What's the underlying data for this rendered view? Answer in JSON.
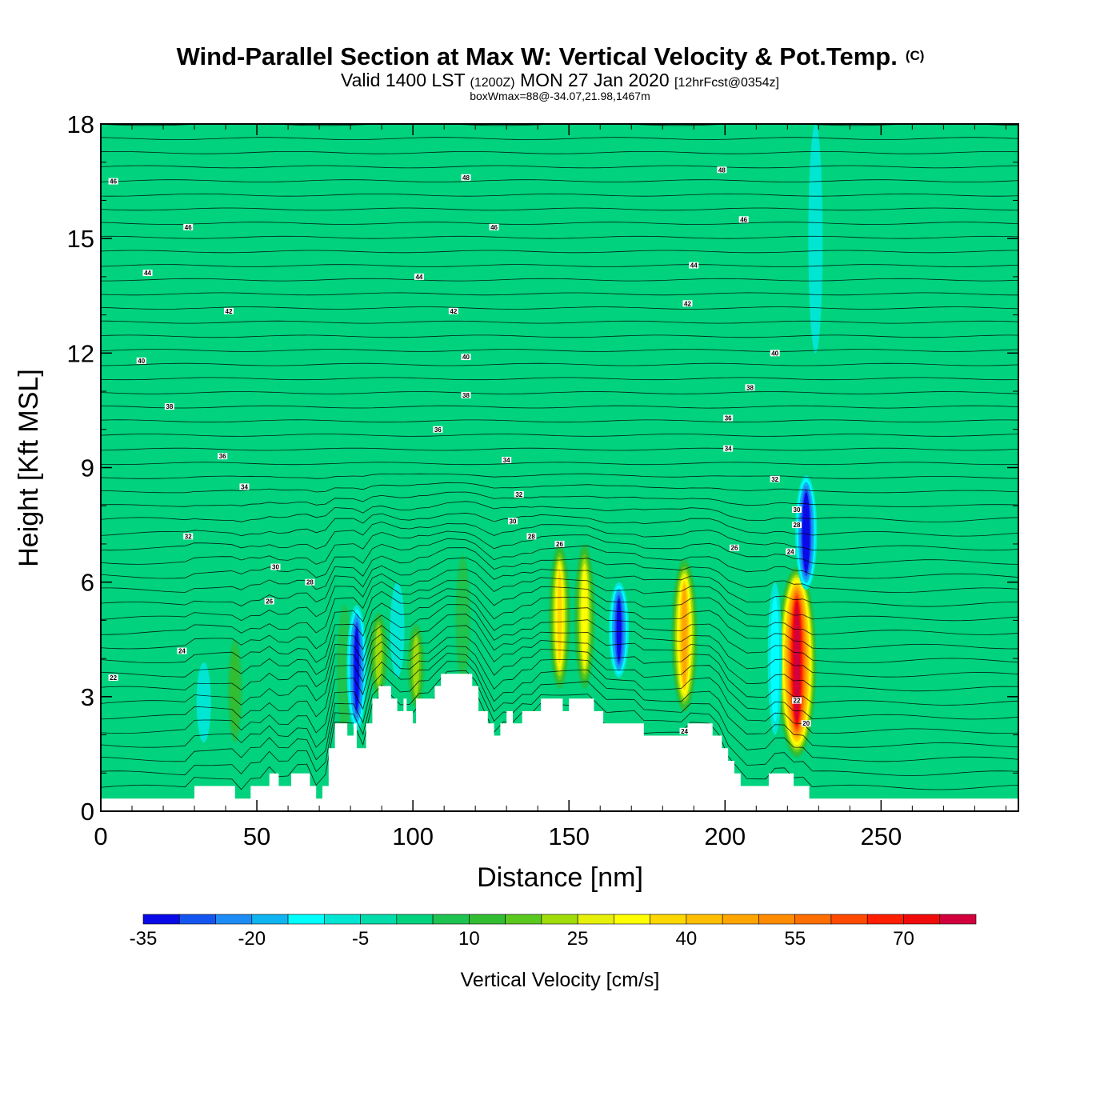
{
  "chart_data": {
    "type": "heatmap",
    "title": "Wind-Parallel Section at Max W: Vertical Velocity & Pot.Temp.",
    "title_mark": "(C)",
    "subtitle_parts": [
      "Valid 1400 LST",
      "(1200Z)",
      "MON 27 Jan 2020",
      "[12hrFcst@0354z]"
    ],
    "subtitle2": "boxWmax=88@-34.07,21.98,1467m",
    "xlabel": "Distance [nm]",
    "ylabel": "Height [Kft MSL]",
    "xlim": [
      0,
      294
    ],
    "ylim": [
      0,
      18
    ],
    "xticks": [
      {
        "value": 0,
        "label": "0"
      },
      {
        "value": 50,
        "label": "50"
      },
      {
        "value": 100,
        "label": "100"
      },
      {
        "value": 150,
        "label": "150"
      },
      {
        "value": 200,
        "label": "200"
      },
      {
        "value": 250,
        "label": "250"
      }
    ],
    "yticks": [
      {
        "value": 0,
        "label": "0"
      },
      {
        "value": 3,
        "label": "3"
      },
      {
        "value": 6,
        "label": "6"
      },
      {
        "value": 9,
        "label": "9"
      },
      {
        "value": 12,
        "label": "12"
      },
      {
        "value": 15,
        "label": "15"
      },
      {
        "value": 18,
        "label": "18"
      }
    ],
    "colorbar": {
      "label": "Vertical Velocity [cm/s]",
      "boundaries": [
        -35,
        -30,
        -25,
        -20,
        -15,
        -10,
        -5,
        0,
        5,
        10,
        15,
        20,
        25,
        30,
        35,
        40,
        45,
        50,
        55,
        60,
        65,
        70,
        75,
        80
      ],
      "colors": [
        "#0a0ae8",
        "#1455f0",
        "#1e8cf5",
        "#0fb4f0",
        "#00ffff",
        "#00e6d2",
        "#00dcaa",
        "#00d27d",
        "#1ec350",
        "#32bd32",
        "#5ac81e",
        "#a0dc0a",
        "#e6f00a",
        "#ffff00",
        "#ffd700",
        "#ffbe00",
        "#ffa500",
        "#ff8c00",
        "#ff6e00",
        "#ff4b00",
        "#ff1e00",
        "#f00a0a",
        "#d2003c"
      ],
      "tick_labels": [
        {
          "value": -35,
          "label": "-35"
        },
        {
          "value": -20,
          "label": "-20"
        },
        {
          "value": -5,
          "label": "-5"
        },
        {
          "value": 10,
          "label": "10"
        },
        {
          "value": 25,
          "label": "25"
        },
        {
          "value": 40,
          "label": "40"
        },
        {
          "value": 55,
          "label": "55"
        },
        {
          "value": 70,
          "label": "70"
        }
      ]
    },
    "background_value": 2,
    "updraft_cells": [
      {
        "x": 43,
        "y0": 1.8,
        "y1": 4.5,
        "w": 10
      },
      {
        "x": 78,
        "y0": 2.0,
        "y1": 5.4,
        "w": 8
      },
      {
        "x": 89,
        "y0": 3.0,
        "y1": 5.2,
        "w": 24
      },
      {
        "x": 101,
        "y0": 2.7,
        "y1": 4.9,
        "w": 22
      },
      {
        "x": 116,
        "y0": 3.4,
        "y1": 6.7,
        "w": 8
      },
      {
        "x": 147,
        "y0": 3.2,
        "y1": 7.0,
        "w": 35
      },
      {
        "x": 155,
        "y0": 3.2,
        "y1": 7.0,
        "w": 32
      },
      {
        "x": 187,
        "y0": 2.6,
        "y1": 6.6,
        "w": 48
      },
      {
        "x": 223,
        "y0": 1.4,
        "y1": 6.4,
        "w": 85
      }
    ],
    "downdraft_cells": [
      {
        "x": 33,
        "y0": 1.8,
        "y1": 3.9,
        "w": -5
      },
      {
        "x": 82,
        "y0": 2.1,
        "y1": 5.4,
        "w": -30
      },
      {
        "x": 95,
        "y0": 3.5,
        "y1": 6.0,
        "w": -5
      },
      {
        "x": 166,
        "y0": 3.5,
        "y1": 6.0,
        "w": -30
      },
      {
        "x": 216,
        "y0": 2.0,
        "y1": 6.0,
        "w": -10
      },
      {
        "x": 226,
        "y0": 5.8,
        "y1": 8.8,
        "w": -35
      },
      {
        "x": 229,
        "y0": 12.0,
        "y1": 18.0,
        "w": -5
      }
    ],
    "theta_contour_labels": [
      {
        "x": 4,
        "y": 16.5,
        "label": "46"
      },
      {
        "x": 28,
        "y": 15.3,
        "label": "46"
      },
      {
        "x": 15,
        "y": 14.1,
        "label": "44"
      },
      {
        "x": 41,
        "y": 13.1,
        "label": "42"
      },
      {
        "x": 13,
        "y": 11.8,
        "label": "40"
      },
      {
        "x": 22,
        "y": 10.6,
        "label": "38"
      },
      {
        "x": 39,
        "y": 9.3,
        "label": "36"
      },
      {
        "x": 46,
        "y": 8.5,
        "label": "34"
      },
      {
        "x": 28,
        "y": 7.2,
        "label": "32"
      },
      {
        "x": 56,
        "y": 6.4,
        "label": "30"
      },
      {
        "x": 67,
        "y": 6.0,
        "label": "28"
      },
      {
        "x": 54,
        "y": 5.5,
        "label": "26"
      },
      {
        "x": 26,
        "y": 4.2,
        "label": "24"
      },
      {
        "x": 4,
        "y": 3.5,
        "label": "22"
      },
      {
        "x": 117,
        "y": 16.6,
        "label": "48"
      },
      {
        "x": 126,
        "y": 15.3,
        "label": "46"
      },
      {
        "x": 102,
        "y": 14.0,
        "label": "44"
      },
      {
        "x": 113,
        "y": 13.1,
        "label": "42"
      },
      {
        "x": 117,
        "y": 11.9,
        "label": "40"
      },
      {
        "x": 117,
        "y": 10.9,
        "label": "38"
      },
      {
        "x": 108,
        "y": 10.0,
        "label": "36"
      },
      {
        "x": 130,
        "y": 9.2,
        "label": "34"
      },
      {
        "x": 134,
        "y": 8.3,
        "label": "32"
      },
      {
        "x": 132,
        "y": 7.6,
        "label": "30"
      },
      {
        "x": 138,
        "y": 7.2,
        "label": "28"
      },
      {
        "x": 147,
        "y": 7.0,
        "label": "26"
      },
      {
        "x": 199,
        "y": 16.8,
        "label": "48"
      },
      {
        "x": 206,
        "y": 15.5,
        "label": "46"
      },
      {
        "x": 190,
        "y": 14.3,
        "label": "44"
      },
      {
        "x": 188,
        "y": 13.3,
        "label": "42"
      },
      {
        "x": 216,
        "y": 12.0,
        "label": "40"
      },
      {
        "x": 208,
        "y": 11.1,
        "label": "38"
      },
      {
        "x": 201,
        "y": 10.3,
        "label": "36"
      },
      {
        "x": 201,
        "y": 9.5,
        "label": "34"
      },
      {
        "x": 216,
        "y": 8.7,
        "label": "32"
      },
      {
        "x": 223,
        "y": 7.9,
        "label": "30"
      },
      {
        "x": 223,
        "y": 7.5,
        "label": "28"
      },
      {
        "x": 221,
        "y": 6.8,
        "label": "24"
      },
      {
        "x": 203,
        "y": 6.9,
        "label": "26"
      },
      {
        "x": 187,
        "y": 2.1,
        "label": "24"
      },
      {
        "x": 223,
        "y": 2.9,
        "label": "22"
      },
      {
        "x": 226,
        "y": 2.3,
        "label": "20"
      }
    ],
    "terrain_kft": [
      [
        0,
        0.33
      ],
      [
        30,
        0.33
      ],
      [
        30,
        0.66
      ],
      [
        43,
        0.66
      ],
      [
        43,
        0.33
      ],
      [
        48,
        0.33
      ],
      [
        48,
        0.66
      ],
      [
        54,
        0.66
      ],
      [
        54,
        0.99
      ],
      [
        57,
        0.99
      ],
      [
        57,
        0.66
      ],
      [
        61,
        0.66
      ],
      [
        61,
        0.99
      ],
      [
        67,
        0.99
      ],
      [
        67,
        0.66
      ],
      [
        69,
        0.66
      ],
      [
        69,
        0.33
      ],
      [
        71,
        0.33
      ],
      [
        71,
        0.66
      ],
      [
        73,
        0.66
      ],
      [
        73,
        1.65
      ],
      [
        75,
        1.65
      ],
      [
        75,
        2.3
      ],
      [
        79,
        2.3
      ],
      [
        79,
        1.98
      ],
      [
        81,
        1.98
      ],
      [
        81,
        2.3
      ],
      [
        82,
        2.3
      ],
      [
        82,
        1.65
      ],
      [
        85,
        1.65
      ],
      [
        85,
        2.3
      ],
      [
        87,
        2.3
      ],
      [
        87,
        2.95
      ],
      [
        89,
        2.95
      ],
      [
        89,
        3.28
      ],
      [
        93,
        3.28
      ],
      [
        93,
        2.95
      ],
      [
        95,
        2.95
      ],
      [
        95,
        2.62
      ],
      [
        97,
        2.62
      ],
      [
        97,
        2.95
      ],
      [
        98,
        2.95
      ],
      [
        98,
        2.62
      ],
      [
        100,
        2.62
      ],
      [
        100,
        2.3
      ],
      [
        101,
        2.3
      ],
      [
        101,
        2.95
      ],
      [
        107,
        2.95
      ],
      [
        107,
        3.28
      ],
      [
        109,
        3.28
      ],
      [
        109,
        3.6
      ],
      [
        119,
        3.6
      ],
      [
        119,
        3.28
      ],
      [
        121,
        3.28
      ],
      [
        121,
        2.62
      ],
      [
        124,
        2.62
      ],
      [
        124,
        2.3
      ],
      [
        126,
        2.3
      ],
      [
        126,
        1.98
      ],
      [
        128,
        1.98
      ],
      [
        128,
        2.3
      ],
      [
        130,
        2.3
      ],
      [
        130,
        2.62
      ],
      [
        132,
        2.62
      ],
      [
        132,
        2.3
      ],
      [
        135,
        2.3
      ],
      [
        135,
        2.62
      ],
      [
        141,
        2.62
      ],
      [
        141,
        2.95
      ],
      [
        148,
        2.95
      ],
      [
        148,
        2.62
      ],
      [
        150,
        2.62
      ],
      [
        150,
        2.95
      ],
      [
        158,
        2.95
      ],
      [
        158,
        2.62
      ],
      [
        161,
        2.62
      ],
      [
        161,
        2.3
      ],
      [
        170,
        2.3
      ],
      [
        170,
        2.3
      ],
      [
        174,
        2.3
      ],
      [
        174,
        1.98
      ],
      [
        188,
        1.98
      ],
      [
        188,
        2.3
      ],
      [
        196,
        2.3
      ],
      [
        196,
        1.98
      ],
      [
        199,
        1.98
      ],
      [
        199,
        1.65
      ],
      [
        201,
        1.65
      ],
      [
        201,
        1.32
      ],
      [
        203,
        1.32
      ],
      [
        203,
        0.99
      ],
      [
        205,
        0.99
      ],
      [
        205,
        0.66
      ],
      [
        214,
        0.66
      ],
      [
        214,
        0.99
      ],
      [
        222,
        0.99
      ],
      [
        222,
        0.66
      ],
      [
        227,
        0.66
      ],
      [
        227,
        0.33
      ],
      [
        294,
        0.33
      ]
    ]
  }
}
